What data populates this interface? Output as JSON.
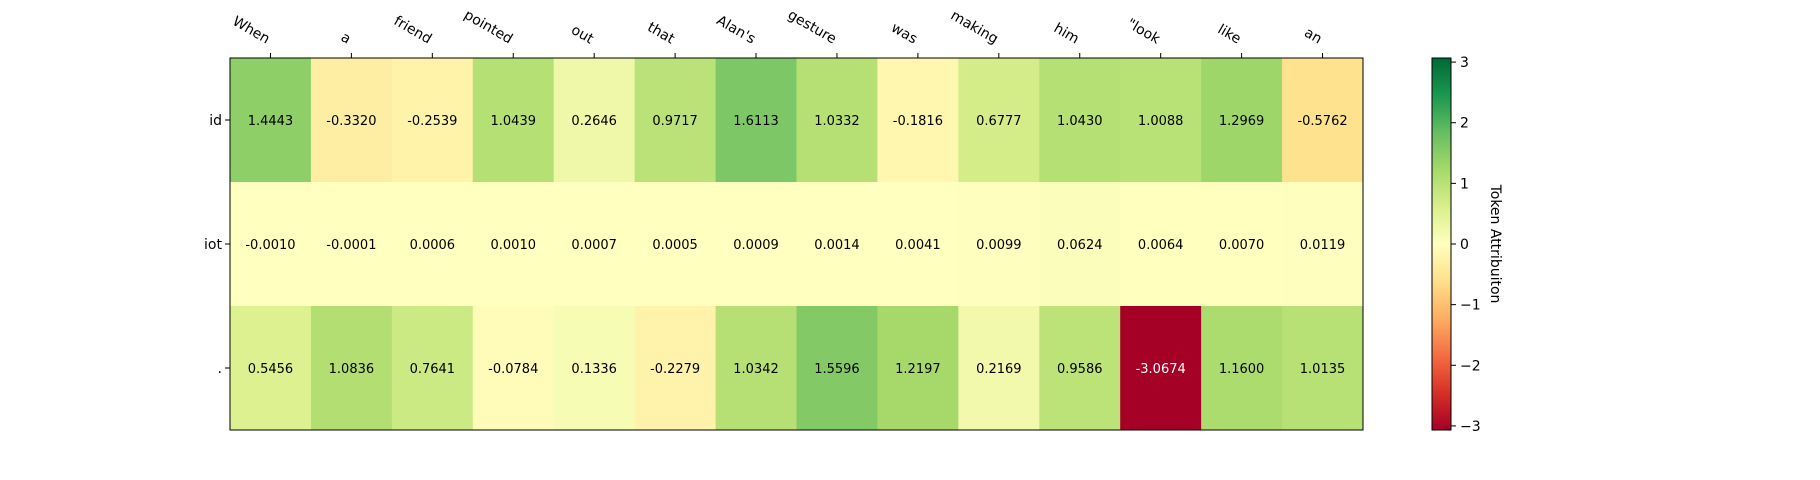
{
  "chart_data": {
    "type": "heatmap",
    "title": "",
    "x_labels": [
      "When",
      "a",
      "friend",
      "pointed",
      "out",
      "that",
      "Alan's",
      "gesture",
      "was",
      "making",
      "him",
      "\"look",
      "like",
      "an"
    ],
    "y_labels": [
      "id",
      "iot",
      "."
    ],
    "values": [
      [
        1.4443,
        -0.332,
        -0.2539,
        1.0439,
        0.2646,
        0.9717,
        1.6113,
        1.0332,
        -0.1816,
        0.6777,
        1.043,
        1.0088,
        1.2969,
        -0.5762
      ],
      [
        -0.001,
        -0.0001,
        0.0006,
        0.001,
        0.0007,
        0.0005,
        0.0009,
        0.0014,
        0.0041,
        0.0099,
        0.0624,
        0.0064,
        0.007,
        0.0119
      ],
      [
        0.5456,
        1.0836,
        0.7641,
        -0.0784,
        0.1336,
        -0.2279,
        1.0342,
        1.5596,
        1.2197,
        0.2169,
        0.9586,
        -3.0674,
        1.16,
        1.0135
      ]
    ],
    "value_format_decimals": 4,
    "colormap": "RdYlGn",
    "color_range": [
      -3.0674,
      3.0674
    ],
    "colorbar": {
      "label": "Token Attribuiton",
      "ticks": [
        3,
        2,
        1,
        0,
        -1,
        -2,
        -3
      ],
      "tick_labels": [
        "3",
        "2",
        "1",
        "0",
        "−1",
        "−2",
        "−3"
      ]
    },
    "grid": false
  }
}
